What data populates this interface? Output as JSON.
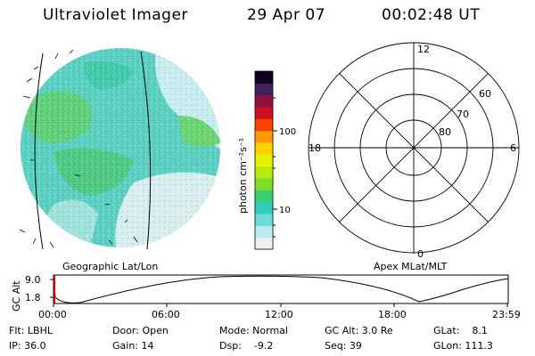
{
  "header": {
    "instrument": "Ultraviolet Imager",
    "date": "29 Apr 07",
    "time": "00:02:48 UT"
  },
  "imager_panel": {
    "label": "Geographic Lat/Lon"
  },
  "colorbar": {
    "unit_label": "photon cm⁻²s⁻¹",
    "tick_labels": [
      "100",
      "10"
    ],
    "colors": [
      "#f0f0f0",
      "#b8ecf0",
      "#6cdcd8",
      "#2ccfc0",
      "#38d070",
      "#7ce020",
      "#b4ec10",
      "#e8f000",
      "#ffd000",
      "#ff9800",
      "#ff4000",
      "#d01020",
      "#901040",
      "#402060",
      "#100020"
    ]
  },
  "polar_plot": {
    "label": "Apex MLat/MLT",
    "mlt_labels": {
      "top": "12",
      "left": "18",
      "right": "6",
      "bottom": "0"
    },
    "lat_labels": [
      "60",
      "70",
      "80"
    ]
  },
  "altitude_plot": {
    "ylabel": "GC Alt",
    "y_ticks": [
      "9.0",
      "1.8"
    ],
    "x_ticks": [
      "00:00",
      "06:00",
      "12:00",
      "18:00",
      "23:59"
    ]
  },
  "info": {
    "flt": "Flt: LBHL",
    "ip": "IP: 36.0",
    "door": "Door: Open",
    "gain": "Gain: 14",
    "mode": "Mode: Normal",
    "dsp": "Dsp:    -9.2",
    "gcalt": "GC Alt: 3.0 Re",
    "seq": "Seq: 39",
    "glat": "GLat:    8.1",
    "glon": "GLon: 111.3"
  },
  "colors": {
    "ink": "#000000",
    "background": "#ffffff",
    "marker": "#cc0000"
  }
}
